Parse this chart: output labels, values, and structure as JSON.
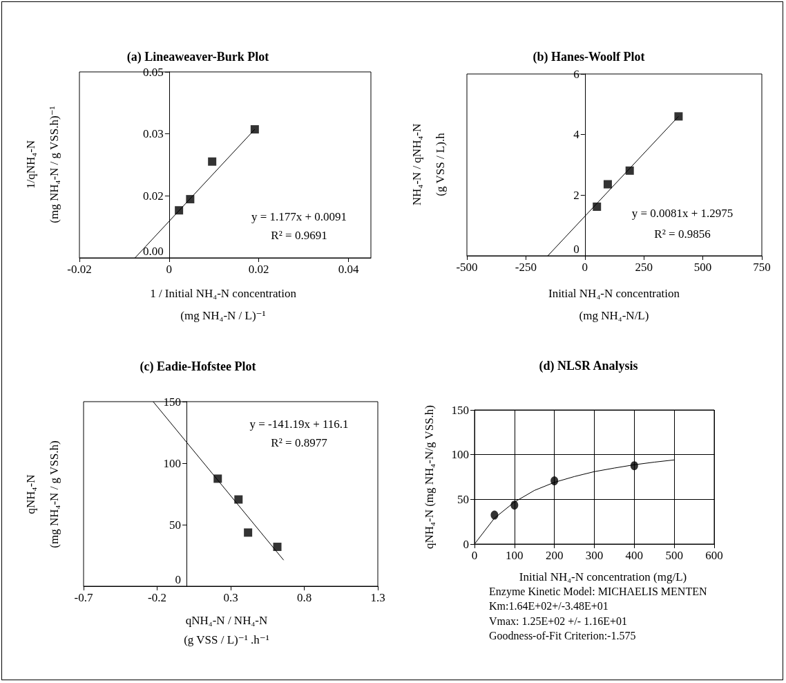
{
  "chart_data": [
    {
      "type": "scatter",
      "title": "(a) Lineaweaver-Burk Plot",
      "xlabel": "1 / Initial NH₄-N concentration\n(mg NH₄-N / L)⁻¹",
      "ylabel": "1/qNH₄-N\n(mg NH₄-N / g VSS.h)⁻¹",
      "xlim": [
        -0.02,
        0.045
      ],
      "xticks": [
        -0.02,
        0,
        0.02,
        0.04
      ],
      "ylim": [
        0,
        0.045
      ],
      "yticks": [
        {
          "value": 0,
          "label": "0.00"
        },
        {
          "value": 0.015,
          "label": "0.02"
        },
        {
          "value": 0.03,
          "label": "0.03"
        },
        {
          "value": 0.045,
          "label": "0.05"
        }
      ],
      "grid": false,
      "annotations": [
        "y = 1.177x + 0.0091",
        "R² = 0.9691"
      ],
      "series": [
        {
          "type": "scatter",
          "marker": "square",
          "color": "#000000",
          "x": [
            0.0022,
            0.0047,
            0.0096,
            0.0191
          ],
          "values": [
            0.0115,
            0.0142,
            0.0233,
            0.0311
          ]
        },
        {
          "type": "line",
          "marker": "none",
          "color": "#000000",
          "x": [
            -0.0076,
            0.0191
          ],
          "values": [
            0,
            0.0311
          ]
        }
      ]
    },
    {
      "type": "scatter",
      "title": "(b) Hanes-Woolf Plot",
      "xlabel": "Initial NH₄-N concentration\n(mg NH₄-N/L)",
      "ylabel": "NH₄-N / qNH₄-N\n(g VSS / L).h",
      "xlim": [
        -500,
        750
      ],
      "xticks": [
        -500,
        -250,
        0,
        250,
        500,
        750
      ],
      "ylim": [
        0,
        6
      ],
      "yticks": [
        0,
        2,
        4,
        6
      ],
      "grid": false,
      "annotations": [
        "y = 0.0081x + 1.2975",
        "R² = 0.9856"
      ],
      "series": [
        {
          "type": "scatter",
          "marker": "square",
          "color": "#000000",
          "x": [
            51,
            97,
            190,
            397
          ],
          "values": [
            1.62,
            2.36,
            2.81,
            4.6
          ]
        },
        {
          "type": "line",
          "marker": "none",
          "color": "#000000",
          "x": [
            -157,
            397
          ],
          "values": [
            0,
            4.6
          ]
        }
      ]
    },
    {
      "type": "scatter",
      "title": "(c) Eadie-Hofstee Plot",
      "xlabel": "qNH₄-N / NH₄-N\n(g VSS / L)⁻¹ .h⁻¹",
      "ylabel": "qNH₄-N\n(mg NH₄-N / g VSS.h)",
      "xlim": [
        -0.7,
        1.3
      ],
      "xticks": [
        -0.7,
        -0.2,
        0.3,
        0.8,
        1.3
      ],
      "ylim": [
        0,
        150
      ],
      "yticks": [
        0,
        50,
        100,
        150
      ],
      "grid": false,
      "annotations": [
        "y = -141.19x + 116.1",
        "R² = 0.8977"
      ],
      "series": [
        {
          "type": "scatter",
          "marker": "square",
          "color": "#000000",
          "x": [
            0.212,
            0.353,
            0.418,
            0.617
          ],
          "values": [
            87.4,
            70.5,
            43.6,
            32
          ]
        },
        {
          "type": "line",
          "marker": "none",
          "color": "#000000",
          "x": [
            -0.227,
            0.66
          ],
          "values": [
            150,
            21.2
          ]
        }
      ]
    },
    {
      "type": "scatter",
      "title": "(d) NLSR Analysis",
      "xlabel": "Initial NH₄-N concentration (mg/L)",
      "ylabel": "qNH₄-N (mg NH₄-N/g VSS.h)",
      "xlim": [
        0,
        600
      ],
      "xticks": [
        0,
        100,
        200,
        300,
        400,
        500,
        600
      ],
      "ylim": [
        0,
        150
      ],
      "yticks": [
        0,
        50,
        100,
        150
      ],
      "grid": true,
      "annotations": [
        "Enzyme Kinetic Model: MICHAELIS MENTEN",
        "Km:1.64E+02+/-3.48E+01",
        "Vmax: 1.25E+02 +/- 1.16E+01",
        "Goodness-of-Fit Criterion:-1.575"
      ],
      "series": [
        {
          "type": "scatter",
          "marker": "circle",
          "color": "#000000",
          "x": [
            50,
            100,
            200,
            400
          ],
          "values": [
            32.4,
            43.5,
            70.7,
            87.6
          ]
        },
        {
          "type": "line",
          "marker": "none",
          "color": "#000000",
          "x": [
            0,
            50,
            100,
            150,
            200,
            250,
            300,
            350,
            400,
            450,
            500
          ],
          "values": [
            0,
            29,
            47,
            60,
            69,
            75.5,
            81,
            85,
            88.7,
            91.6,
            94.1
          ]
        }
      ]
    }
  ]
}
